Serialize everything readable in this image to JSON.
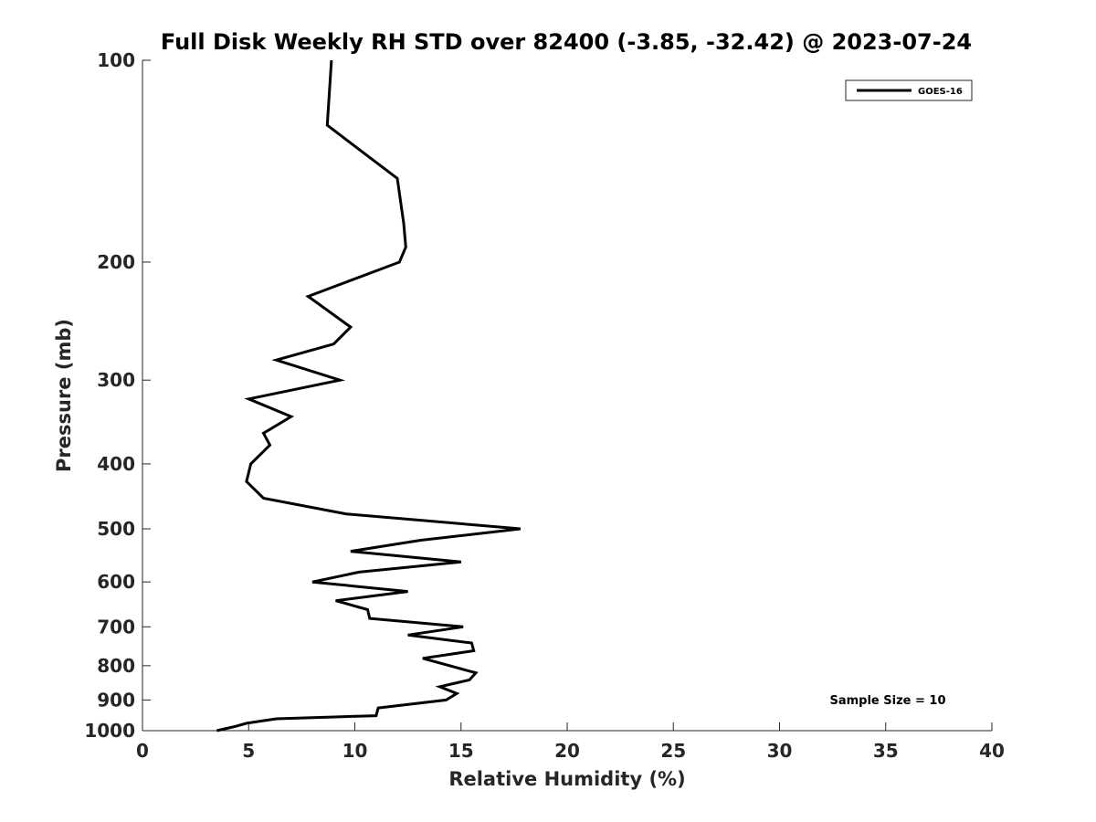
{
  "chart_data": {
    "type": "line",
    "title": "Full Disk Weekly RH STD over 82400 (-3.85, -32.42) @ 2023-07-24",
    "xlabel": "Relative Humidity (%)",
    "ylabel": "Pressure (mb)",
    "xlim": [
      0,
      40
    ],
    "ylim": [
      1000,
      100
    ],
    "yscale": "log",
    "y_reversed": true,
    "xticks": [
      0,
      5,
      10,
      15,
      20,
      25,
      30,
      35,
      40
    ],
    "yticks": [
      100,
      200,
      300,
      400,
      500,
      600,
      700,
      800,
      900,
      1000
    ],
    "grid": false,
    "legend": {
      "position": "top-right",
      "entries": [
        "GOES-16"
      ]
    },
    "annotation": "Sample Size = 10",
    "series": [
      {
        "name": "GOES-16",
        "color": "#000000",
        "points": [
          [
            8.9,
            100
          ],
          [
            8.7,
            125
          ],
          [
            12.0,
            150
          ],
          [
            12.3,
            175
          ],
          [
            12.4,
            190
          ],
          [
            12.1,
            200
          ],
          [
            7.8,
            225
          ],
          [
            9.8,
            250
          ],
          [
            9.0,
            265
          ],
          [
            6.3,
            280
          ],
          [
            9.3,
            300
          ],
          [
            5.0,
            320
          ],
          [
            7.0,
            340
          ],
          [
            5.7,
            360
          ],
          [
            6.0,
            375
          ],
          [
            5.1,
            400
          ],
          [
            4.9,
            425
          ],
          [
            5.7,
            450
          ],
          [
            9.6,
            475
          ],
          [
            17.8,
            500
          ],
          [
            13.1,
            520
          ],
          [
            9.8,
            540
          ],
          [
            15.0,
            560
          ],
          [
            10.2,
            580
          ],
          [
            8.0,
            600
          ],
          [
            12.5,
            620
          ],
          [
            9.1,
            640
          ],
          [
            10.6,
            660
          ],
          [
            10.7,
            680
          ],
          [
            15.1,
            700
          ],
          [
            12.5,
            720
          ],
          [
            15.5,
            740
          ],
          [
            15.6,
            760
          ],
          [
            13.2,
            780
          ],
          [
            15.7,
            820
          ],
          [
            15.4,
            840
          ],
          [
            14.0,
            860
          ],
          [
            14.8,
            880
          ],
          [
            14.3,
            900
          ],
          [
            11.1,
            925
          ],
          [
            11.0,
            950
          ],
          [
            6.3,
            960
          ],
          [
            4.9,
            975
          ],
          [
            4.4,
            985
          ],
          [
            3.5,
            1000
          ]
        ]
      }
    ]
  }
}
